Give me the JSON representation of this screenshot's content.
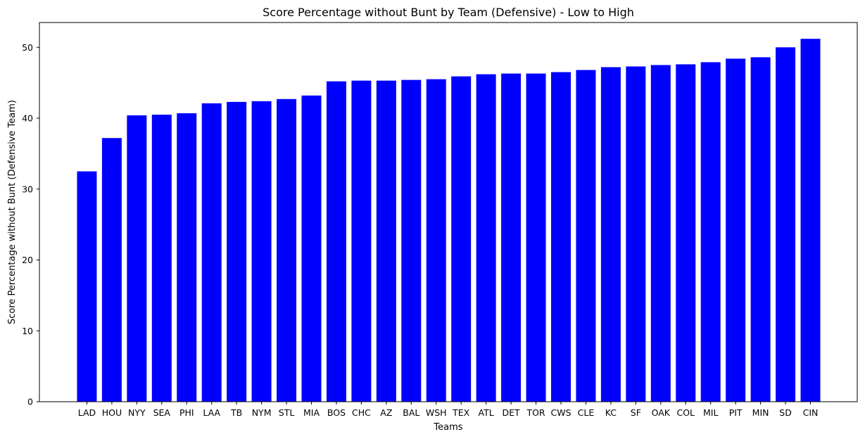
{
  "chart_data": {
    "type": "bar",
    "title": "Score Percentage without Bunt by Team (Defensive) - Low to High",
    "xlabel": "Teams",
    "ylabel": "Score Percentage without Bunt (Defensive Team)",
    "ylim": [
      0,
      53.5
    ],
    "yticks": [
      0,
      10,
      20,
      30,
      40,
      50
    ],
    "grid": false,
    "bar_color": "#0000ff",
    "categories": [
      "LAD",
      "HOU",
      "NYY",
      "SEA",
      "PHI",
      "LAA",
      "TB",
      "NYM",
      "STL",
      "MIA",
      "BOS",
      "CHC",
      "AZ",
      "BAL",
      "WSH",
      "TEX",
      "ATL",
      "DET",
      "TOR",
      "CWS",
      "CLE",
      "KC",
      "SF",
      "OAK",
      "COL",
      "MIL",
      "PIT",
      "MIN",
      "SD",
      "CIN"
    ],
    "values": [
      32.5,
      37.2,
      40.4,
      40.5,
      40.7,
      42.1,
      42.3,
      42.4,
      42.7,
      43.2,
      45.2,
      45.3,
      45.3,
      45.4,
      45.5,
      45.9,
      46.2,
      46.3,
      46.3,
      46.5,
      46.8,
      47.2,
      47.3,
      47.5,
      47.6,
      47.9,
      48.4,
      48.6,
      50.0,
      51.2
    ]
  }
}
